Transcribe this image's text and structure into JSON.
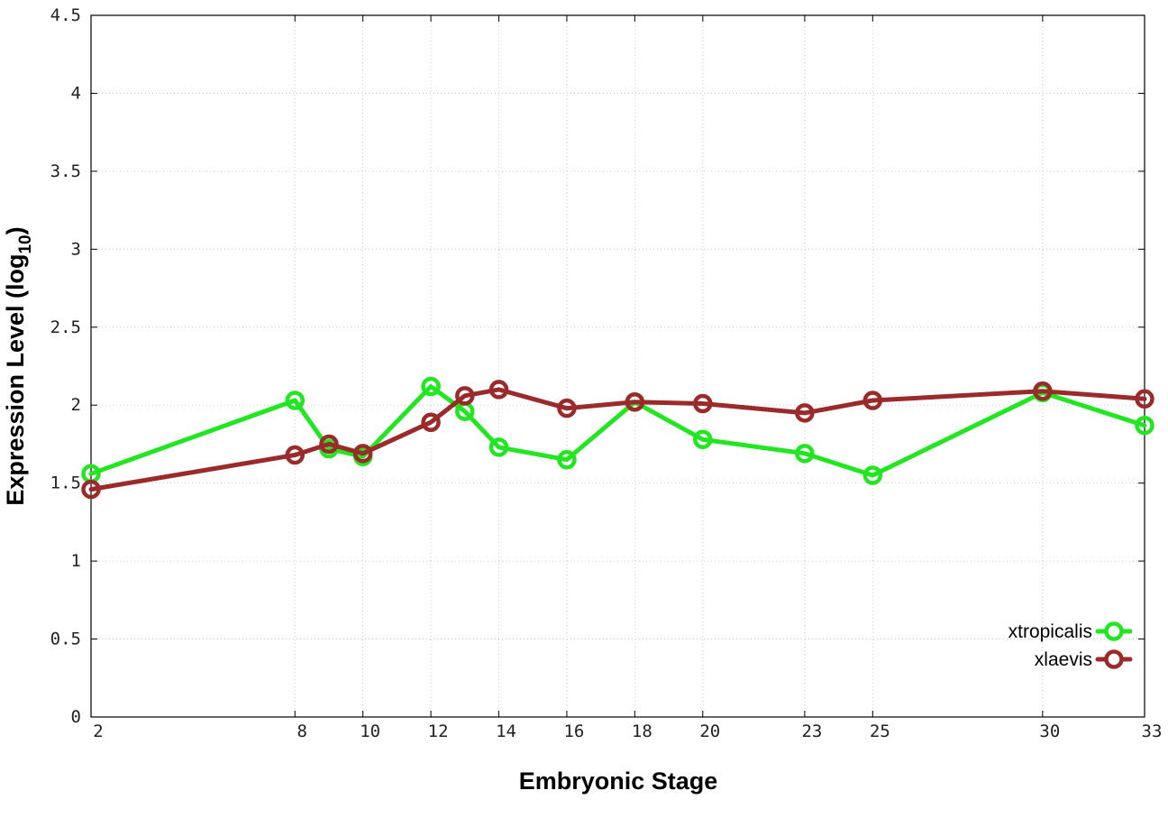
{
  "chart_data": {
    "type": "line",
    "xlabel": "Embryonic Stage",
    "ylabel_main": "Expression Level (log",
    "ylabel_sub": "10",
    "ylabel_close": ")",
    "ylim": [
      0,
      4.5
    ],
    "xlim": [
      2,
      33
    ],
    "x_ticks": [
      2,
      8,
      10,
      12,
      14,
      16,
      18,
      20,
      23,
      25,
      30,
      33
    ],
    "x_tick_labels": [
      "2",
      "8",
      "10",
      "12",
      "14",
      "16",
      "18",
      "20",
      "23",
      "25",
      "30",
      "33"
    ],
    "y_ticks": [
      0,
      0.5,
      1,
      1.5,
      2,
      2.5,
      3,
      3.5,
      4,
      4.5
    ],
    "y_tick_labels": [
      "0",
      "0.5",
      "1",
      "1.5",
      "2",
      "2.5",
      "3",
      "3.5",
      "4",
      "4.5"
    ],
    "grid": true,
    "legend_position": "bottom-right",
    "series": [
      {
        "name": "xtropicalis",
        "color": "#22e622",
        "x": [
          2,
          8,
          9,
          10,
          12,
          13,
          14,
          16,
          18,
          20,
          23,
          25,
          30,
          33
        ],
        "y": [
          1.56,
          2.03,
          1.72,
          1.67,
          2.12,
          1.96,
          1.73,
          1.65,
          2.02,
          1.78,
          1.69,
          1.55,
          2.08,
          1.87
        ]
      },
      {
        "name": "xlaevis",
        "color": "#9b2a2a",
        "x": [
          2,
          8,
          9,
          10,
          12,
          13,
          14,
          16,
          18,
          20,
          23,
          25,
          30,
          33
        ],
        "y": [
          1.46,
          1.68,
          1.75,
          1.69,
          1.89,
          2.06,
          2.1,
          1.98,
          2.02,
          2.01,
          1.95,
          2.03,
          2.09,
          2.04
        ]
      }
    ]
  }
}
